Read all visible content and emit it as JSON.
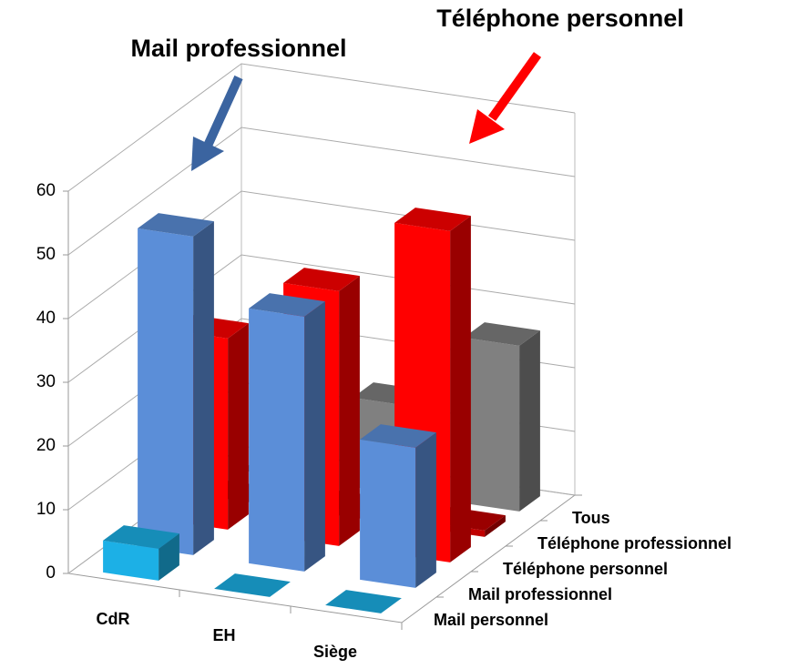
{
  "chart_data": {
    "type": "bar3d",
    "categories": [
      "CdR",
      "EH",
      "Siège"
    ],
    "series": [
      {
        "name": "Mail personnel",
        "color": "#1cb0e6",
        "values": [
          5,
          0,
          0
        ]
      },
      {
        "name": "Mail professionnel",
        "color": "#5b8ed8",
        "values": [
          50,
          40,
          22
        ]
      },
      {
        "name": "Téléphone personnel",
        "color": "#ff0000",
        "values": [
          30,
          40,
          52
        ]
      },
      {
        "name": "Téléphone professionnel",
        "color": "#c00000",
        "values": [
          0,
          1,
          1
        ]
      },
      {
        "name": "Tous",
        "color": "#808080",
        "values": [
          0,
          14,
          26
        ]
      }
    ],
    "ylim": [
      0,
      60
    ],
    "yticks": [
      0,
      10,
      20,
      30,
      40,
      50,
      60
    ],
    "annotations": [
      {
        "text": "Mail professionnel",
        "color": "#3b64a0"
      },
      {
        "text": "Téléphone personnel",
        "color": "#ff0000"
      }
    ]
  }
}
